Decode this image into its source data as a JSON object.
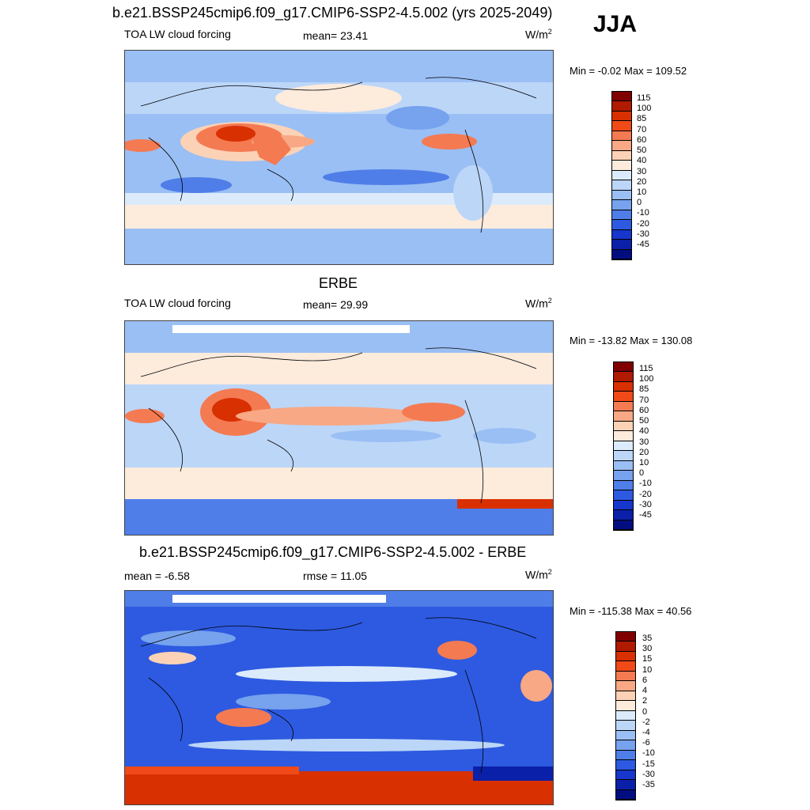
{
  "season": "JJA",
  "panels": [
    {
      "title": "b.e21.BSSP245cmip6.f09_g17.CMIP6-SSP2-4.5.002 (yrs 2025-2049)",
      "left_label": "TOA LW cloud forcing",
      "center_label": "mean=  23.41",
      "units": "W/m",
      "units_sup": "2",
      "minmax": "Min =  -0.02 Max = 109.52",
      "colorbar": {
        "colors": [
          "#800000",
          "#b01a00",
          "#d83000",
          "#f04a18",
          "#f47a52",
          "#f8a884",
          "#fcd2b6",
          "#fdebdc",
          "#dcebfb",
          "#bcd6f8",
          "#9abff4",
          "#76a2ee",
          "#4f7ee8",
          "#2d5ae0",
          "#1636cc",
          "#0a20a8",
          "#020e80"
        ],
        "ticks": [
          "115",
          "100",
          "85",
          "70",
          "60",
          "50",
          "40",
          "30",
          "20",
          "10",
          "0",
          "-10",
          "-20",
          "-30",
          "-45"
        ]
      }
    },
    {
      "title": "ERBE",
      "left_label": "TOA LW cloud forcing",
      "center_label": "mean=  29.99",
      "units": "W/m",
      "units_sup": "2",
      "minmax": "Min = -13.82 Max = 130.08",
      "colorbar": {
        "colors": [
          "#800000",
          "#b01a00",
          "#d83000",
          "#f04a18",
          "#f47a52",
          "#f8a884",
          "#fcd2b6",
          "#fdebdc",
          "#dcebfb",
          "#bcd6f8",
          "#9abff4",
          "#76a2ee",
          "#4f7ee8",
          "#2d5ae0",
          "#1636cc",
          "#0a20a8",
          "#020e80"
        ],
        "ticks": [
          "115",
          "100",
          "85",
          "70",
          "60",
          "50",
          "40",
          "30",
          "20",
          "10",
          "0",
          "-10",
          "-20",
          "-30",
          "-45"
        ]
      }
    },
    {
      "title": "b.e21.BSSP245cmip6.f09_g17.CMIP6-SSP2-4.5.002 - ERBE",
      "left_label": "mean =  -6.58",
      "center_label": "rmse =  11.05",
      "units": "W/m",
      "units_sup": "2",
      "minmax": "Min = -115.38 Max =  40.56",
      "colorbar": {
        "colors": [
          "#800000",
          "#b01a00",
          "#d83000",
          "#f04a18",
          "#f47a52",
          "#f8a884",
          "#fcd2b6",
          "#fdebdc",
          "#dcebfb",
          "#bcd6f8",
          "#9abff4",
          "#76a2ee",
          "#4f7ee8",
          "#2d5ae0",
          "#1636cc",
          "#0a20a8",
          "#020e80"
        ],
        "ticks": [
          "35",
          "30",
          "15",
          "10",
          "6",
          "4",
          "2",
          "0",
          "-2",
          "-4",
          "-6",
          "-10",
          "-15",
          "-30",
          "-35"
        ]
      }
    }
  ]
}
